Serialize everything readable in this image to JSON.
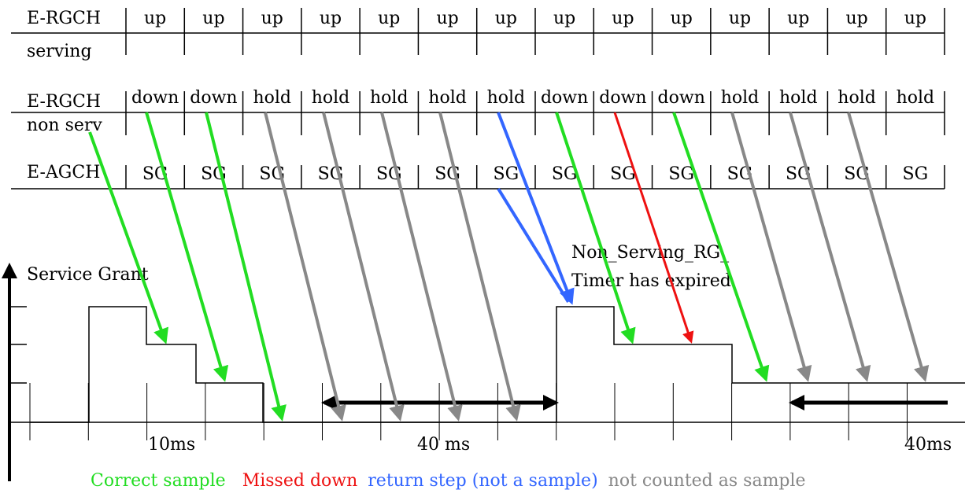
{
  "channels": [
    {
      "label_line1": "E-RGCH",
      "label_line2": "serving",
      "slots": [
        "up",
        "up",
        "up",
        "up",
        "up",
        "up",
        "up",
        "up",
        "up",
        "up",
        "up",
        "up",
        "up",
        "up"
      ]
    },
    {
      "label_line1": "E-RGCH",
      "label_line2": "non serv",
      "slots": [
        "down",
        "down",
        "hold",
        "hold",
        "hold",
        "hold",
        "hold",
        "down",
        "down",
        "down",
        "hold",
        "hold",
        "hold",
        "hold"
      ]
    },
    {
      "label_line1": "E-AGCH",
      "label_line2": "",
      "slots": [
        "SG",
        "SG",
        "SG",
        "SG",
        "SG",
        "SG",
        "SG",
        "SG",
        "SG",
        "SG",
        "SG",
        "SG",
        "SG",
        "SG"
      ]
    }
  ],
  "grant_axis_label": "Service Grant",
  "timer_note_line1": "Non_Serving_RG_",
  "timer_note_line2": "Timer has expired",
  "durations": [
    "10ms",
    "40 ms",
    "40ms"
  ],
  "legend": [
    {
      "text": "Correct sample",
      "color": "#22dd22"
    },
    {
      "text": "Missed down",
      "color": "#ee1111"
    },
    {
      "text": "return step (not a sample)",
      "color": "#3366ff"
    },
    {
      "text": "not counted as sample",
      "color": "#888888"
    }
  ],
  "colors": {
    "correct": "#22dd22",
    "missed": "#ee1111",
    "return": "#3366ff",
    "not_counted": "#888888",
    "ink": "#000000"
  }
}
